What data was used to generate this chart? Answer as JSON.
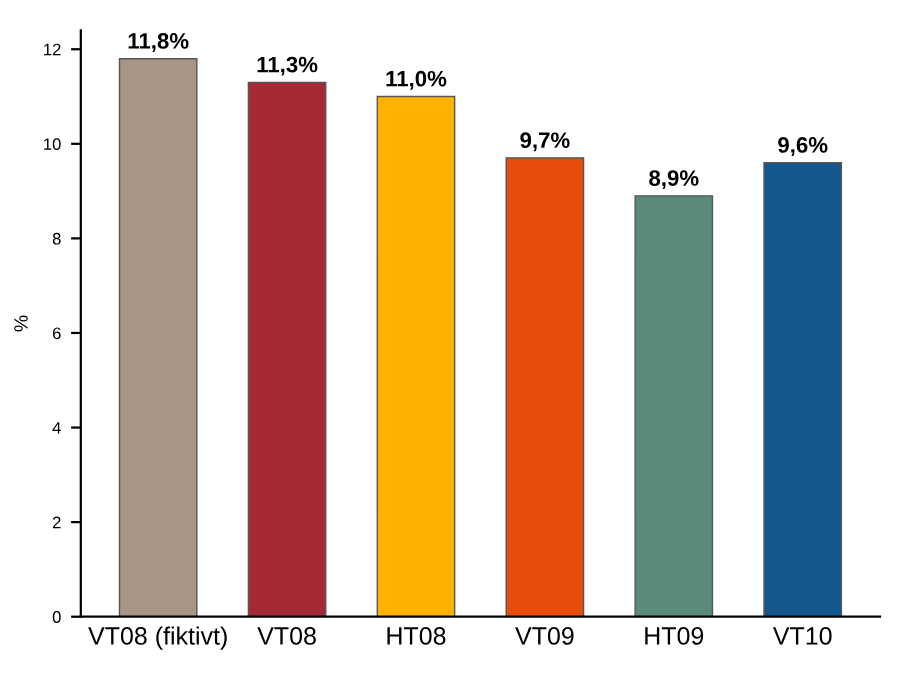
{
  "chart_data": {
    "type": "bar",
    "ylabel": "%",
    "categories": [
      "VT08 (fiktivt)",
      "VT08",
      "HT08",
      "VT09",
      "HT09",
      "VT10"
    ],
    "values": [
      11.8,
      11.3,
      11.0,
      9.7,
      8.9,
      9.6
    ],
    "value_labels": [
      "11,8%",
      "11,3%",
      "11,0%",
      "9,7%",
      "8,9%",
      "9,6%"
    ],
    "colors": [
      "#a89583",
      "#a52a35",
      "#ffb300",
      "#e84c0a",
      "#5a8a78",
      "#13578e"
    ],
    "ylim": [
      0,
      12.4
    ],
    "yticks": [
      0,
      2,
      4,
      6,
      8,
      10,
      12
    ],
    "grid": false
  }
}
